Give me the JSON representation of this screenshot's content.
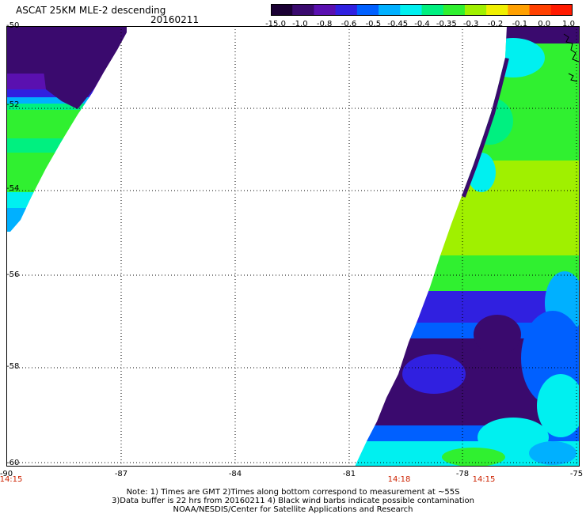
{
  "header": {
    "title": "ASCAT 25KM MLE-2 descending",
    "date": "20160211"
  },
  "colorbar": {
    "labels": [
      "-15.0",
      "-1.0",
      "-0.8",
      "-0.6",
      "-0.5",
      "-0.45",
      "-0.4",
      "-0.35",
      "-0.3",
      "-0.2",
      "-0.1",
      "0.0",
      "1.0"
    ],
    "colors": [
      "#1a0033",
      "#3a0a6e",
      "#5a10b0",
      "#3020e0",
      "#0060ff",
      "#00b0ff",
      "#00f0f0",
      "#00f080",
      "#30f030",
      "#a0f000",
      "#f0f000",
      "#ffa000",
      "#ff4000",
      "#ff1a00"
    ]
  },
  "map": {
    "lat_labels": [
      "-50",
      "-52",
      "-54",
      "-56",
      "-58",
      "-60"
    ],
    "lon_labels": [
      "-90",
      "-87",
      "-84",
      "-81",
      "-78",
      "-75"
    ],
    "time_labels": [
      "14:15",
      "14:18",
      "14:15"
    ]
  },
  "footer": {
    "line1": "Note: 1) Times are GMT 2)Times along bottom correspond to measurement at ~55S",
    "line2": "3)Data buffer is 22 hrs from 20160211 4) Black wind barbs indicate possible contamination",
    "line3": "NOAA/NESDIS/Center for Satellite Applications and Research"
  }
}
